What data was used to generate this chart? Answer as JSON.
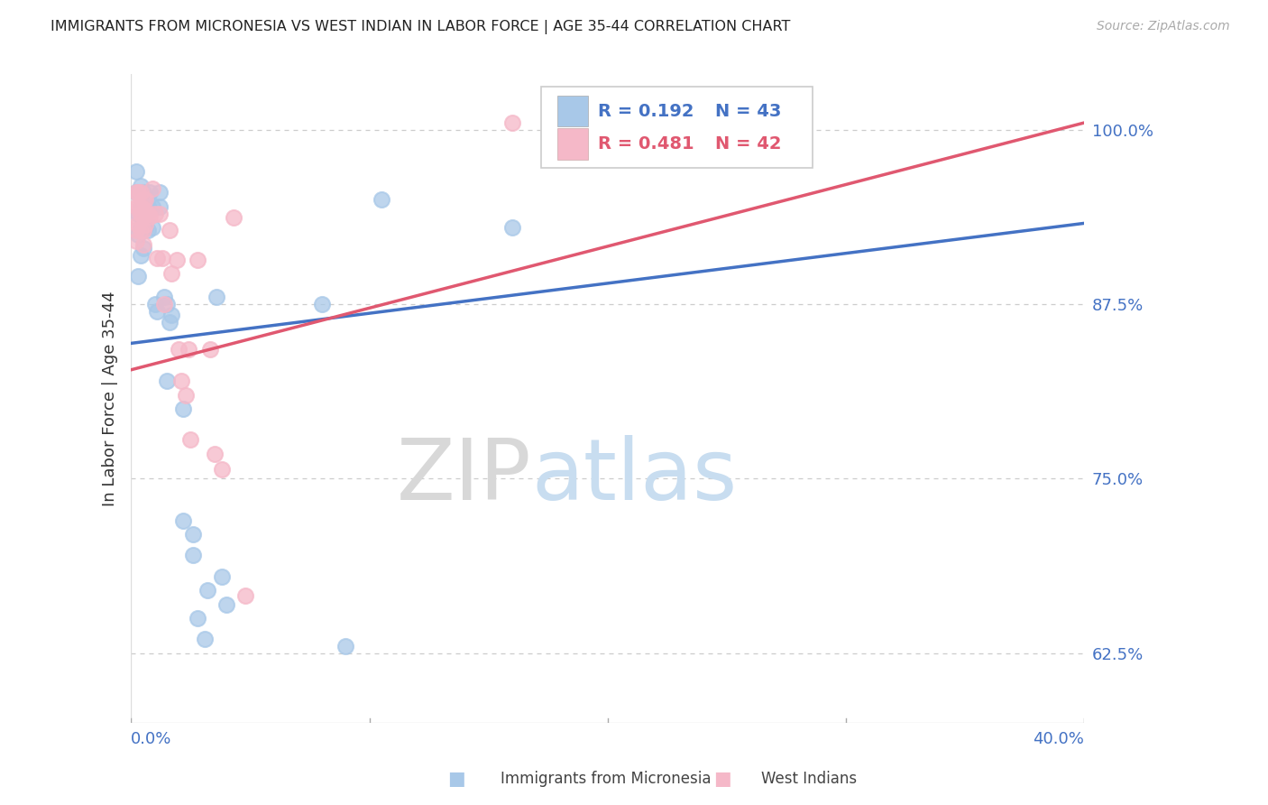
{
  "title": "IMMIGRANTS FROM MICRONESIA VS WEST INDIAN IN LABOR FORCE | AGE 35-44 CORRELATION CHART",
  "source": "Source: ZipAtlas.com",
  "ylabel": "In Labor Force | Age 35-44",
  "yticks": [
    0.625,
    0.75,
    0.875,
    1.0
  ],
  "ytick_labels": [
    "62.5%",
    "75.0%",
    "87.5%",
    "100.0%"
  ],
  "micronesia_color": "#a8c8e8",
  "west_indian_color": "#f5b8c8",
  "micronesia_line_color": "#4472c4",
  "west_indian_line_color": "#e05870",
  "micronesia_label": "Immigrants from Micronesia",
  "west_indian_label": "West Indians",
  "background_color": "#ffffff",
  "grid_color": "#cccccc",
  "axis_color": "#4472c4",
  "title_color": "#222222",
  "xlim": [
    0.0,
    0.4
  ],
  "ylim": [
    0.575,
    1.04
  ],
  "mic_line_x0": 0.0,
  "mic_line_y0": 0.847,
  "mic_line_x1": 0.4,
  "mic_line_y1": 0.933,
  "wi_line_x0": 0.0,
  "wi_line_y0": 0.828,
  "wi_line_x1": 0.4,
  "wi_line_y1": 1.005,
  "micronesia_x": [
    0.002,
    0.002,
    0.003,
    0.003,
    0.003,
    0.004,
    0.004,
    0.004,
    0.004,
    0.005,
    0.005,
    0.005,
    0.006,
    0.006,
    0.007,
    0.007,
    0.008,
    0.008,
    0.009,
    0.009,
    0.01,
    0.011,
    0.012,
    0.012,
    0.014,
    0.015,
    0.015,
    0.016,
    0.017,
    0.022,
    0.022,
    0.026,
    0.026,
    0.028,
    0.031,
    0.032,
    0.036,
    0.038,
    0.04,
    0.08,
    0.09,
    0.105,
    0.16
  ],
  "micronesia_y": [
    0.97,
    0.955,
    0.94,
    0.925,
    0.895,
    0.96,
    0.945,
    0.93,
    0.91,
    0.955,
    0.935,
    0.915,
    0.945,
    0.93,
    0.945,
    0.928,
    0.955,
    0.942,
    0.945,
    0.93,
    0.875,
    0.87,
    0.955,
    0.945,
    0.88,
    0.875,
    0.82,
    0.862,
    0.867,
    0.72,
    0.8,
    0.71,
    0.695,
    0.65,
    0.635,
    0.67,
    0.88,
    0.68,
    0.66,
    0.875,
    0.63,
    0.95,
    0.93
  ],
  "west_indian_x": [
    0.002,
    0.002,
    0.002,
    0.002,
    0.002,
    0.003,
    0.003,
    0.003,
    0.004,
    0.004,
    0.004,
    0.004,
    0.005,
    0.005,
    0.005,
    0.005,
    0.006,
    0.006,
    0.006,
    0.007,
    0.008,
    0.009,
    0.01,
    0.011,
    0.012,
    0.013,
    0.014,
    0.016,
    0.017,
    0.019,
    0.02,
    0.021,
    0.023,
    0.024,
    0.025,
    0.028,
    0.033,
    0.035,
    0.038,
    0.043,
    0.048,
    0.16
  ],
  "west_indian_y": [
    0.955,
    0.945,
    0.938,
    0.928,
    0.92,
    0.955,
    0.945,
    0.932,
    0.955,
    0.94,
    0.928,
    0.945,
    0.95,
    0.938,
    0.928,
    0.918,
    0.942,
    0.95,
    0.932,
    0.94,
    0.938,
    0.958,
    0.94,
    0.908,
    0.94,
    0.908,
    0.875,
    0.928,
    0.897,
    0.907,
    0.843,
    0.82,
    0.81,
    0.843,
    0.778,
    0.907,
    0.843,
    0.768,
    0.757,
    0.937,
    0.666,
    1.005
  ]
}
